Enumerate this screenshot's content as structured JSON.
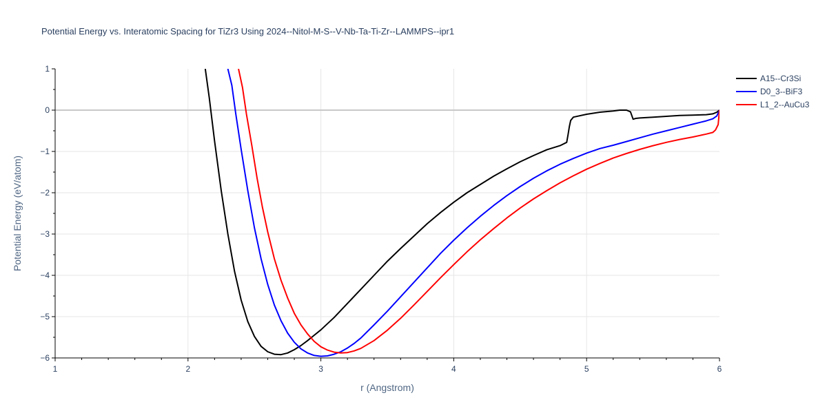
{
  "chart_data": {
    "type": "line",
    "title": "Potential Energy vs. Interatomic Spacing for TiZr3 Using 2024--Nitol-M-S--V-Nb-Ta-Ti-Zr--LAMMPS--ipr1",
    "xlabel": "r (Angstrom)",
    "ylabel": "Potential Energy (eV/atom)",
    "xlim": [
      1,
      6
    ],
    "ylim": [
      -6,
      1
    ],
    "xticks": [
      1,
      2,
      3,
      4,
      5,
      6
    ],
    "yticks": [
      1,
      0,
      -1,
      -2,
      -3,
      -4,
      -5,
      -6
    ],
    "ytick_labels": [
      "1",
      "0",
      "−1",
      "−2",
      "−3",
      "−4",
      "−5",
      "−6"
    ],
    "grid": true,
    "legend_position": "top-right",
    "series": [
      {
        "name": "A15--Cr3Si",
        "color": "#000000",
        "x": [
          2.13,
          2.16,
          2.2,
          2.25,
          2.3,
          2.35,
          2.4,
          2.45,
          2.5,
          2.55,
          2.6,
          2.65,
          2.7,
          2.75,
          2.8,
          2.85,
          2.9,
          2.95,
          3.0,
          3.1,
          3.2,
          3.3,
          3.4,
          3.5,
          3.6,
          3.7,
          3.8,
          3.9,
          4.0,
          4.1,
          4.2,
          4.3,
          4.4,
          4.5,
          4.6,
          4.7,
          4.8,
          4.85,
          4.86,
          4.87,
          4.88,
          4.9,
          5.0,
          5.1,
          5.2,
          5.25,
          5.3,
          5.33,
          5.35,
          5.37,
          5.4,
          5.5,
          5.6,
          5.7,
          5.8,
          5.9,
          5.95,
          5.98,
          6.0
        ],
        "y": [
          1.0,
          0.3,
          -0.75,
          -1.95,
          -3.0,
          -3.9,
          -4.6,
          -5.12,
          -5.48,
          -5.72,
          -5.85,
          -5.91,
          -5.92,
          -5.88,
          -5.8,
          -5.7,
          -5.58,
          -5.45,
          -5.32,
          -5.02,
          -4.68,
          -4.34,
          -4.0,
          -3.66,
          -3.35,
          -3.05,
          -2.75,
          -2.48,
          -2.23,
          -2.0,
          -1.8,
          -1.6,
          -1.42,
          -1.25,
          -1.1,
          -0.96,
          -0.86,
          -0.78,
          -0.6,
          -0.4,
          -0.25,
          -0.17,
          -0.1,
          -0.05,
          -0.02,
          0.0,
          0.0,
          -0.04,
          -0.22,
          -0.2,
          -0.19,
          -0.17,
          -0.15,
          -0.13,
          -0.12,
          -0.11,
          -0.09,
          -0.05,
          0.0
        ]
      },
      {
        "name": "D0_3--BiF3",
        "color": "#0000ff",
        "x": [
          2.3,
          2.33,
          2.36,
          2.4,
          2.45,
          2.5,
          2.55,
          2.6,
          2.65,
          2.7,
          2.75,
          2.8,
          2.85,
          2.9,
          2.95,
          3.0,
          3.05,
          3.1,
          3.15,
          3.2,
          3.25,
          3.3,
          3.4,
          3.5,
          3.6,
          3.7,
          3.8,
          3.9,
          4.0,
          4.1,
          4.2,
          4.3,
          4.4,
          4.5,
          4.6,
          4.7,
          4.8,
          4.9,
          5.0,
          5.1,
          5.2,
          5.3,
          5.4,
          5.5,
          5.6,
          5.7,
          5.8,
          5.9,
          5.95,
          5.98,
          6.0
        ],
        "y": [
          1.0,
          0.6,
          -0.1,
          -0.95,
          -1.95,
          -2.85,
          -3.6,
          -4.22,
          -4.72,
          -5.1,
          -5.4,
          -5.62,
          -5.78,
          -5.88,
          -5.94,
          -5.96,
          -5.95,
          -5.91,
          -5.85,
          -5.76,
          -5.65,
          -5.52,
          -5.2,
          -4.87,
          -4.52,
          -4.17,
          -3.82,
          -3.47,
          -3.15,
          -2.85,
          -2.57,
          -2.31,
          -2.07,
          -1.85,
          -1.65,
          -1.47,
          -1.31,
          -1.17,
          -1.04,
          -0.93,
          -0.85,
          -0.76,
          -0.67,
          -0.58,
          -0.5,
          -0.42,
          -0.34,
          -0.26,
          -0.21,
          -0.14,
          0.0
        ]
      },
      {
        "name": "L1_2--AuCu3",
        "color": "#ff0000",
        "x": [
          2.38,
          2.41,
          2.44,
          2.48,
          2.52,
          2.56,
          2.6,
          2.65,
          2.7,
          2.75,
          2.8,
          2.85,
          2.9,
          2.95,
          3.0,
          3.05,
          3.1,
          3.15,
          3.2,
          3.25,
          3.3,
          3.4,
          3.5,
          3.6,
          3.7,
          3.8,
          3.9,
          4.0,
          4.1,
          4.2,
          4.3,
          4.4,
          4.5,
          4.6,
          4.7,
          4.8,
          4.9,
          5.0,
          5.1,
          5.2,
          5.3,
          5.4,
          5.5,
          5.6,
          5.7,
          5.8,
          5.9,
          5.95,
          5.97,
          5.99,
          6.0
        ],
        "y": [
          1.0,
          0.55,
          -0.1,
          -0.85,
          -1.65,
          -2.35,
          -2.95,
          -3.6,
          -4.12,
          -4.55,
          -4.92,
          -5.2,
          -5.42,
          -5.6,
          -5.73,
          -5.81,
          -5.86,
          -5.88,
          -5.87,
          -5.83,
          -5.77,
          -5.58,
          -5.33,
          -5.04,
          -4.72,
          -4.39,
          -4.06,
          -3.74,
          -3.43,
          -3.14,
          -2.87,
          -2.61,
          -2.37,
          -2.15,
          -1.95,
          -1.76,
          -1.59,
          -1.43,
          -1.29,
          -1.16,
          -1.05,
          -0.95,
          -0.86,
          -0.78,
          -0.71,
          -0.65,
          -0.58,
          -0.54,
          -0.48,
          -0.35,
          0.0
        ]
      }
    ]
  }
}
